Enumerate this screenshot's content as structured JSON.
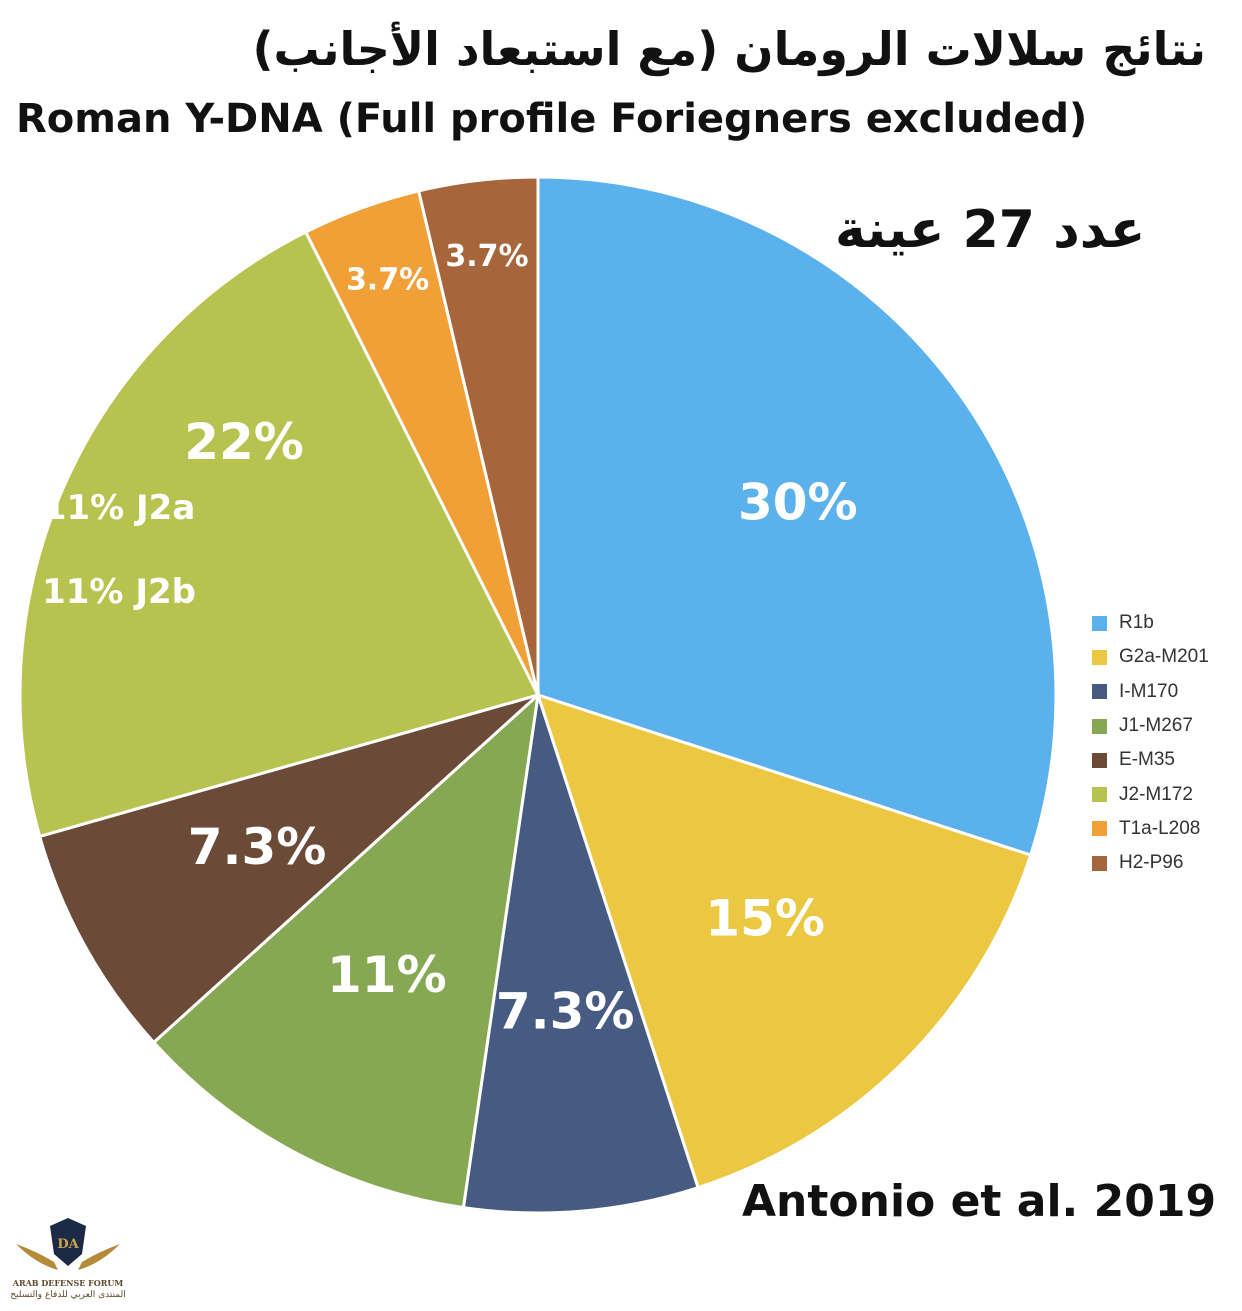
{
  "header": {
    "title_ar": "نتائج سلالات الرومان (مع استبعاد الأجانب)",
    "title_en": "Roman Y-DNA (Full profile Foriegners excluded)",
    "sample_count": "عدد 27 عينة"
  },
  "source": "Antonio et al. 2019",
  "watermark": {
    "logo_letters": "DA",
    "name_en": "ARAB DEFENSE FORUM",
    "name_ar": "المنتدى العربي للدفاع والتسليح"
  },
  "chart_data": {
    "type": "pie",
    "title": "Roman Y-DNA (Full profile Foriegners excluded)",
    "start": "12 o'clock, clockwise",
    "legend_position": "right",
    "slices": [
      {
        "name": "R1b",
        "value": 30,
        "label": "30%",
        "color": "#5bb1ec"
      },
      {
        "name": "G2a-M201",
        "value": 15,
        "label": "15%",
        "color": "#ecc842"
      },
      {
        "name": "I-M170",
        "value": 7.3,
        "label": "7.3%",
        "color": "#475a82"
      },
      {
        "name": "J1-M267",
        "value": 11,
        "label": "11%",
        "color": "#87a852"
      },
      {
        "name": "E-M35",
        "value": 7.3,
        "label": "7.3%",
        "color": "#6b4a38"
      },
      {
        "name": "J2-M172",
        "value": 22,
        "label": "22%",
        "sublabels": [
          "11% J2a",
          "11% J2b"
        ],
        "color": "#b8c24e"
      },
      {
        "name": "T1a-L208",
        "value": 3.7,
        "label": "3.7%",
        "color": "#f0a037"
      },
      {
        "name": "H2-P96",
        "value": 3.7,
        "label": "3.7%",
        "color": "#a6653a"
      }
    ]
  }
}
